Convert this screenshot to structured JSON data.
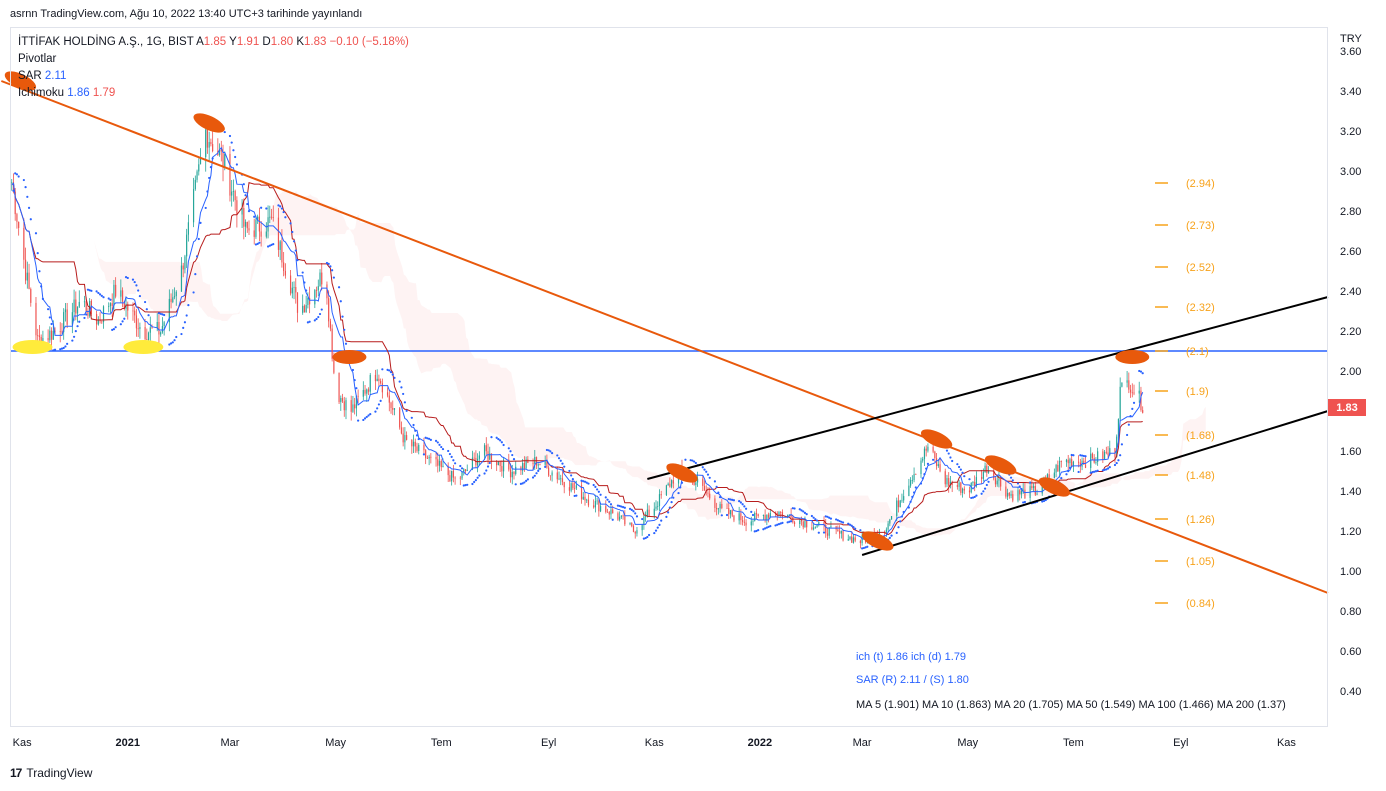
{
  "header": {
    "published": "asrnn TradingView.com, Ağu 10, 2022 13:40 UTC+3 tarihinde yayınlandı"
  },
  "legend": {
    "symbol": "İTTİFAK HOLDİNG A.Ş., 1G, BIST",
    "ohlc": {
      "o_label": "A",
      "o": "1.85",
      "h_label": "Y",
      "h": "1.91",
      "l_label": "D",
      "l": "1.80",
      "c_label": "K",
      "c": "1.83",
      "change": "−0.10 (−5.18%)"
    },
    "pivots": "Pivotlar",
    "sar_label": "SAR",
    "sar_value": "2.11",
    "ichimoku_label": "Ichimoku",
    "ich_t": "1.86",
    "ich_d": "1.79"
  },
  "currency": "TRY",
  "last_price": "1.83",
  "notes": {
    "ich": "ich (t) 1.86 ich (d) 1.79",
    "sar": "SAR (R) 2.11 / (S) 1.80",
    "ma": "MA 5 (1.901) MA 10 (1.863) MA 20 (1.705) MA 50 (1.549) MA 100 (1.466) MA 200 (1.37)"
  },
  "brand": {
    "logo": "17",
    "name": "TradingView"
  },
  "colors": {
    "up": "#26a69a",
    "down": "#ef5350",
    "tenkan": "#2962ff",
    "kijun": "#b71c1c",
    "sar": "#2962ff",
    "trend_orange": "#e8590c",
    "channel": "#000000",
    "support_blue": "#2962ff",
    "fib": "#f7a21b",
    "marker_orange": "#e8590c",
    "marker_yellow": "#ffeb3b"
  },
  "chart_data": {
    "type": "candlestick",
    "yaxis": {
      "ticks": [
        "0.40",
        "0.60",
        "0.80",
        "1.00",
        "1.20",
        "1.40",
        "1.60",
        "1.80",
        "2.00",
        "2.20",
        "2.40",
        "2.60",
        "2.80",
        "3.00",
        "3.20",
        "3.40",
        "3.60"
      ],
      "ylim": [
        0.22,
        3.72
      ]
    },
    "xaxis": {
      "ticks": [
        "Kas",
        "2021",
        "Mar",
        "May",
        "Tem",
        "Eyl",
        "Kas",
        "2022",
        "Mar",
        "May",
        "Tem",
        "Eyl",
        "Kas"
      ],
      "range": [
        "2020-10-25",
        "2022-11-25"
      ]
    },
    "close_path": [
      [
        "2020-10-25",
        3.0
      ],
      [
        "2020-11-03",
        2.5
      ],
      [
        "2020-11-10",
        2.15
      ],
      [
        "2020-11-20",
        2.2
      ],
      [
        "2020-12-05",
        2.35
      ],
      [
        "2020-12-15",
        2.25
      ],
      [
        "2020-12-25",
        2.4
      ],
      [
        "2021-01-10",
        2.2
      ],
      [
        "2021-01-20",
        2.2
      ],
      [
        "2021-02-01",
        2.5
      ],
      [
        "2021-02-15",
        3.2
      ],
      [
        "2021-02-25",
        3.05
      ],
      [
        "2021-03-10",
        2.7
      ],
      [
        "2021-03-25",
        2.75
      ],
      [
        "2021-04-10",
        2.3
      ],
      [
        "2021-04-25",
        2.5
      ],
      [
        "2021-05-01",
        1.9
      ],
      [
        "2021-05-10",
        1.8
      ],
      [
        "2021-05-25",
        2.0
      ],
      [
        "2021-06-10",
        1.65
      ],
      [
        "2021-06-25",
        1.55
      ],
      [
        "2021-07-10",
        1.45
      ],
      [
        "2021-07-25",
        1.6
      ],
      [
        "2021-08-10",
        1.5
      ],
      [
        "2021-08-25",
        1.55
      ],
      [
        "2021-09-10",
        1.45
      ],
      [
        "2021-09-25",
        1.35
      ],
      [
        "2021-10-10",
        1.28
      ],
      [
        "2021-10-20",
        1.2
      ],
      [
        "2021-11-01",
        1.32
      ],
      [
        "2021-11-15",
        1.5
      ],
      [
        "2021-11-25",
        1.45
      ],
      [
        "2021-12-10",
        1.3
      ],
      [
        "2021-12-25",
        1.25
      ],
      [
        "2022-01-10",
        1.3
      ],
      [
        "2022-01-25",
        1.25
      ],
      [
        "2022-02-10",
        1.2
      ],
      [
        "2022-02-28",
        1.15
      ],
      [
        "2022-03-15",
        1.22
      ],
      [
        "2022-03-28",
        1.45
      ],
      [
        "2022-04-08",
        1.62
      ],
      [
        "2022-04-18",
        1.45
      ],
      [
        "2022-05-01",
        1.4
      ],
      [
        "2022-05-12",
        1.52
      ],
      [
        "2022-05-25",
        1.38
      ],
      [
        "2022-06-10",
        1.4
      ],
      [
        "2022-06-25",
        1.55
      ],
      [
        "2022-07-10",
        1.55
      ],
      [
        "2022-07-25",
        1.6
      ],
      [
        "2022-07-28",
        1.9
      ],
      [
        "2022-08-02",
        1.95
      ],
      [
        "2022-08-10",
        1.83
      ]
    ],
    "fib_levels": [
      {
        "label": "(2.94)",
        "value": 2.94
      },
      {
        "label": "(2.73)",
        "value": 2.73
      },
      {
        "label": "(2.52)",
        "value": 2.52
      },
      {
        "label": "(2.32)",
        "value": 2.32
      },
      {
        "label": "(2.1)",
        "value": 2.1
      },
      {
        "label": "(1.9)",
        "value": 1.9
      },
      {
        "label": "(1.68)",
        "value": 1.68
      },
      {
        "label": "(1.48)",
        "value": 1.48
      },
      {
        "label": "(1.26)",
        "value": 1.26
      },
      {
        "label": "(1.05)",
        "value": 1.05
      },
      {
        "label": "(0.84)",
        "value": 0.84
      }
    ],
    "horizontal_line": 2.1,
    "trendlines": [
      {
        "kind": "descending",
        "from": [
          "2020-10-20",
          3.45
        ],
        "to": [
          "2022-11-25",
          0.89
        ]
      },
      {
        "kind": "channel_upper",
        "from": [
          "2021-10-28",
          1.46
        ],
        "to": [
          "2022-11-25",
          2.37
        ]
      },
      {
        "kind": "channel_lower",
        "from": [
          "2022-03-01",
          1.08
        ],
        "to": [
          "2022-11-25",
          1.8
        ]
      }
    ],
    "markers": [
      {
        "date": "2020-10-31",
        "value": 3.45,
        "color": "orange"
      },
      {
        "date": "2021-02-17",
        "value": 3.24,
        "color": "orange"
      },
      {
        "date": "2021-05-09",
        "value": 2.07,
        "color": "orange"
      },
      {
        "date": "2021-11-17",
        "value": 1.49,
        "color": "orange"
      },
      {
        "date": "2022-03-10",
        "value": 1.15,
        "color": "orange"
      },
      {
        "date": "2022-04-13",
        "value": 1.66,
        "color": "orange"
      },
      {
        "date": "2022-05-20",
        "value": 1.53,
        "color": "orange"
      },
      {
        "date": "2022-06-20",
        "value": 1.42,
        "color": "orange"
      },
      {
        "date": "2022-08-04",
        "value": 2.07,
        "color": "orange"
      },
      {
        "date": "2020-11-07",
        "value": 2.12,
        "color": "yellow"
      },
      {
        "date": "2021-01-10",
        "value": 2.12,
        "color": "yellow"
      }
    ]
  }
}
